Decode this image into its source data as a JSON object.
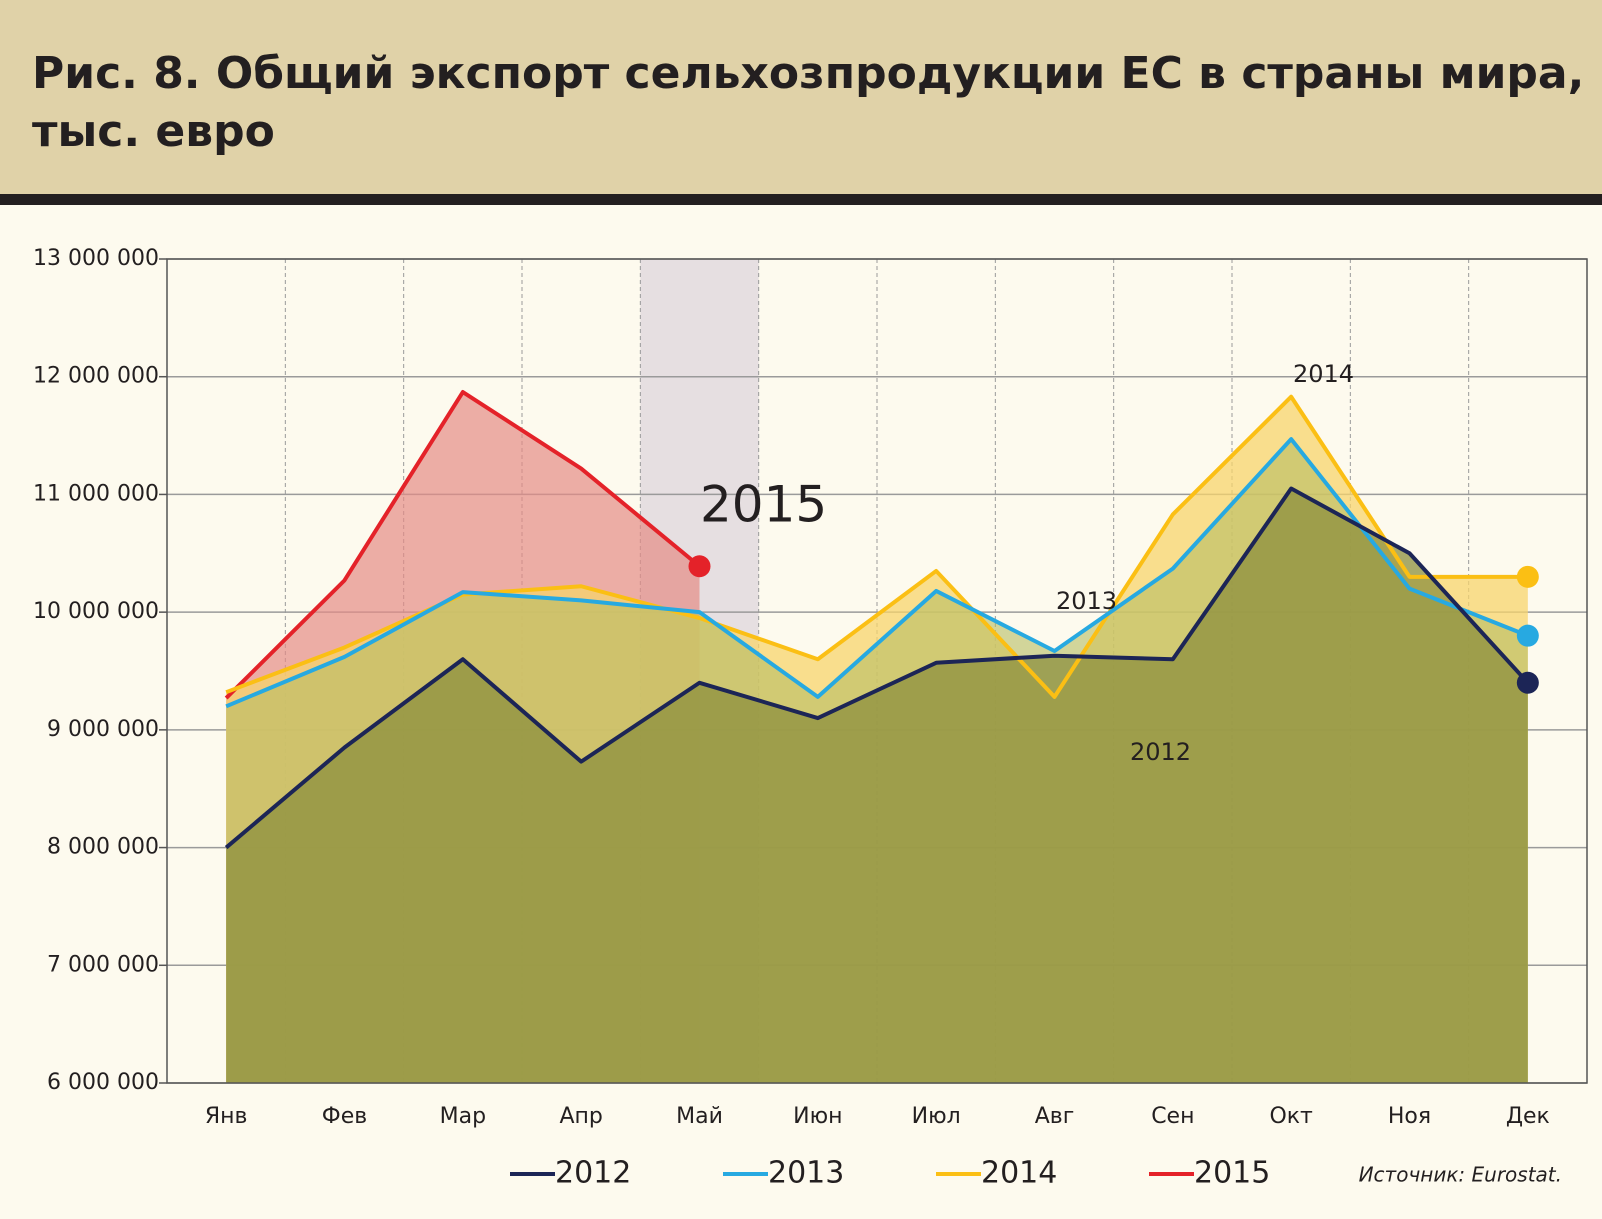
{
  "chart_data": {
    "type": "line",
    "title": "Рис. 8. Общий экспорт сельхозпродукции ЕС в страны мира, тыс. евро",
    "categories": [
      "Янв",
      "Фев",
      "Мар",
      "Апр",
      "Май",
      "Июн",
      "Июл",
      "Авг",
      "Сен",
      "Окт",
      "Ноя",
      "Дек"
    ],
    "series": [
      {
        "name": "2012",
        "color": "#1c2556",
        "values": [
          8000000,
          8850000,
          9600000,
          8730000,
          9400000,
          9100000,
          9570000,
          9630000,
          9600000,
          11050000,
          10500000,
          9400000
        ]
      },
      {
        "name": "2013",
        "color": "#27a9e1",
        "values": [
          9200000,
          9620000,
          10170000,
          10100000,
          10000000,
          9280000,
          10180000,
          9670000,
          10370000,
          11470000,
          10200000,
          9800000
        ]
      },
      {
        "name": "2014",
        "color": "#fbbf14",
        "values": [
          9320000,
          9700000,
          10150000,
          10220000,
          9950000,
          9600000,
          10350000,
          9280000,
          10830000,
          11830000,
          10300000,
          10300000
        ]
      },
      {
        "name": "2015",
        "color": "#e42229",
        "values": [
          9270000,
          10270000,
          11870000,
          11220000,
          10390000,
          null,
          null,
          null,
          null,
          null,
          null,
          null
        ]
      }
    ],
    "ylim": [
      6000000,
      13000000
    ],
    "yticks": [
      {
        "value": 6000000,
        "label": "6 000 000"
      },
      {
        "value": 7000000,
        "label": "7 000 000"
      },
      {
        "value": 8000000,
        "label": "8 000 000"
      },
      {
        "value": 9000000,
        "label": "9 000 000"
      },
      {
        "value": 10000000,
        "label": "10 000 000"
      },
      {
        "value": 11000000,
        "label": "11 000 000"
      },
      {
        "value": 12000000,
        "label": "12 000 000"
      },
      {
        "value": 13000000,
        "label": "13 000 000"
      }
    ],
    "grid": true,
    "annotations": [
      "2015",
      "2014",
      "2013",
      "2012"
    ],
    "source": "Источник: Eurostat."
  }
}
